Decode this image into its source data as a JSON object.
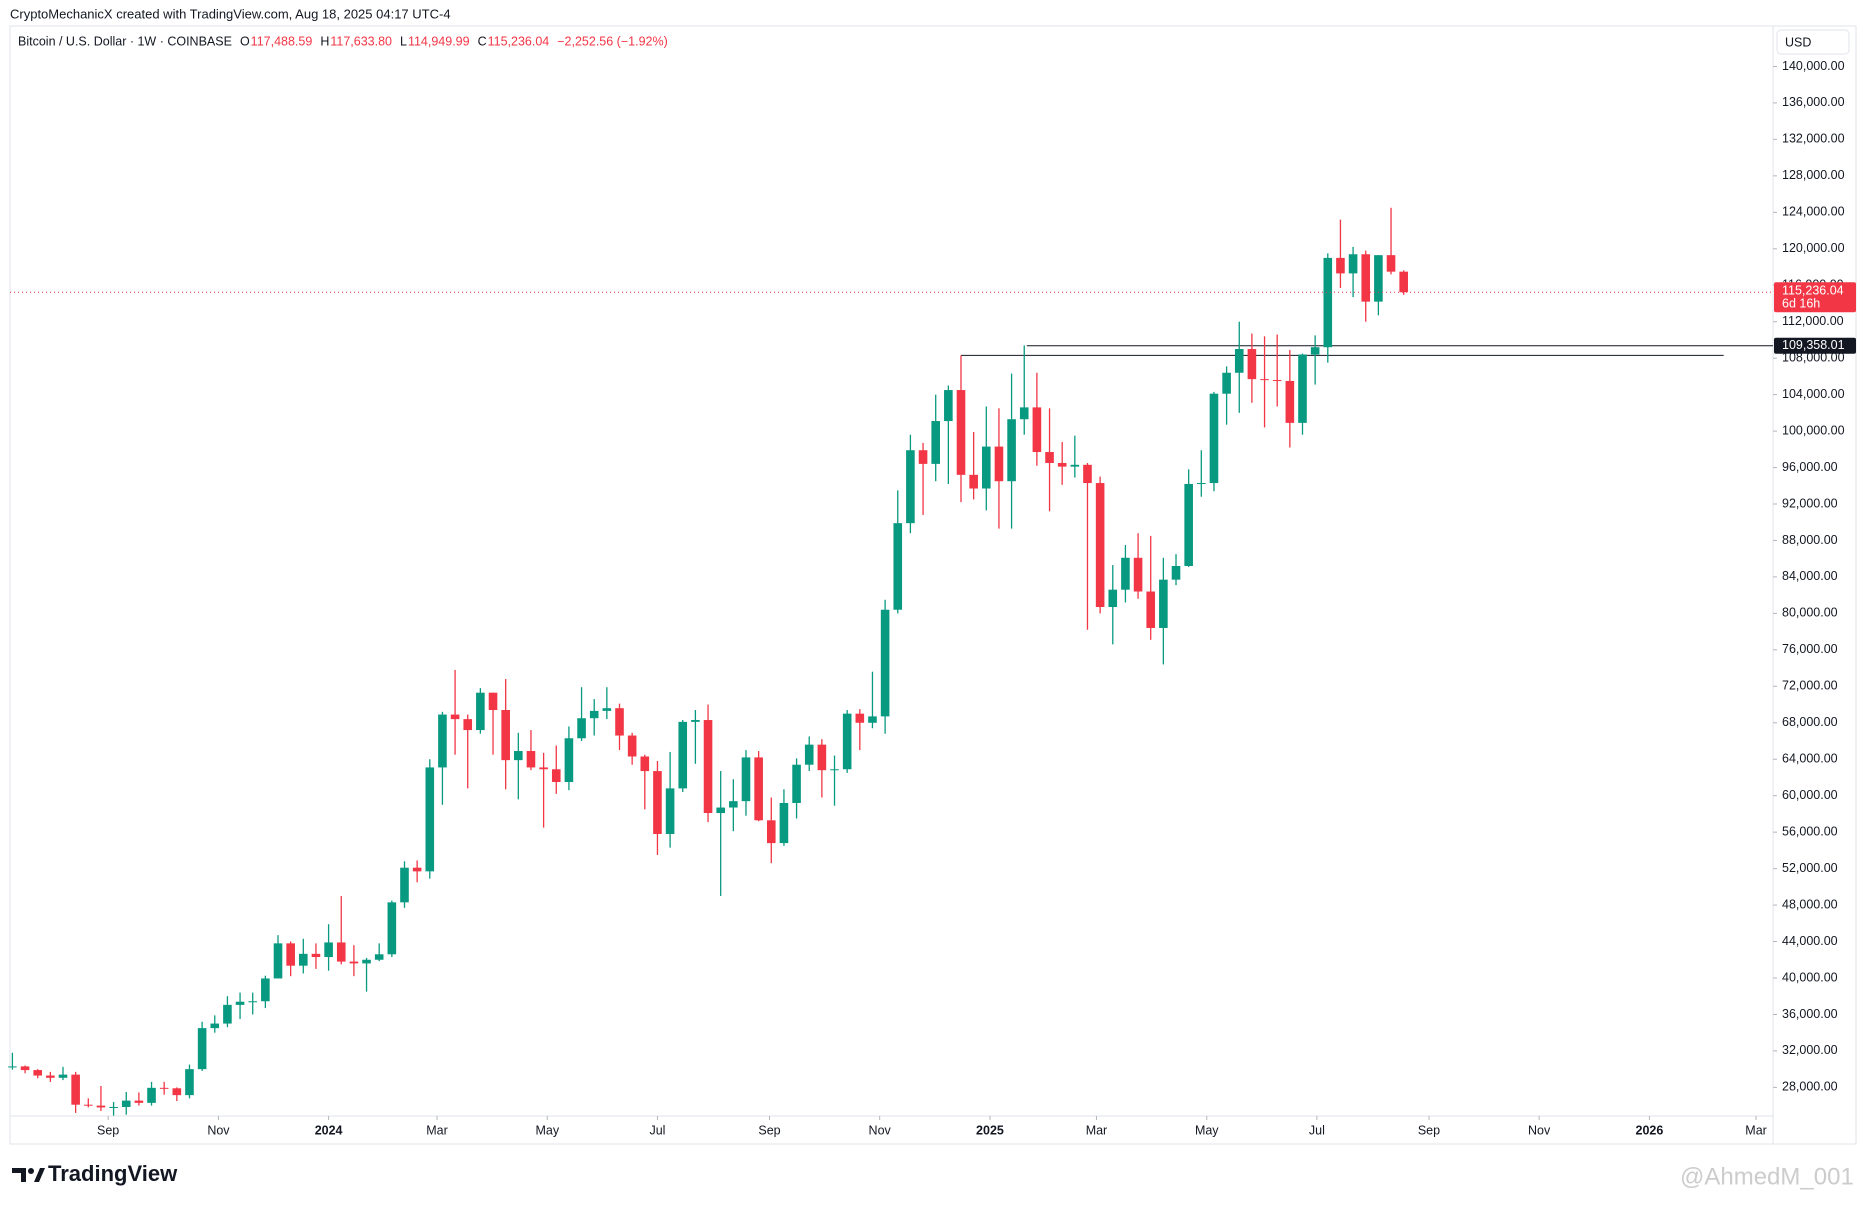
{
  "header": "CryptoMechanicX created with TradingView.com, Aug 18, 2025 04:17 UTC-4",
  "legend": {
    "symbol": "Bitcoin / U.S. Dollar · 1W · COINBASE",
    "ohlc": [
      {
        "key": "O",
        "text": "117,488.59"
      },
      {
        "key": "H",
        "text": "117,633.80"
      },
      {
        "key": "L",
        "text": "114,949.99"
      },
      {
        "key": "C",
        "text": "115,236.04"
      }
    ],
    "change": "−2,252.56 (−1.92%)"
  },
  "brand": "TradingView",
  "watermark": "@AhmedM_001",
  "chart_data": {
    "type": "candlestick",
    "currency": "USD",
    "up_color": "#089981",
    "down_color": "#f23645",
    "open": [
      30300,
      30300,
      29900,
      29300,
      29050,
      29400,
      26100,
      26000,
      25800,
      25850,
      26550,
      26300,
      27950,
      27900,
      27150,
      30000,
      34500,
      35000,
      37050,
      37400,
      37450,
      39950,
      43800,
      41350,
      42650,
      42300,
      43900,
      41800,
      41600,
      42000,
      42600,
      48300,
      52100,
      51700,
      63100,
      68900,
      68400,
      67200,
      71300,
      69400,
      63900,
      64900,
      63100,
      62900,
      61500,
      66300,
      68500,
      69300,
      69600,
      66600,
      64300,
      62700,
      55800,
      60800,
      68100,
      68300,
      58100,
      58700,
      59400,
      64200,
      57300,
      54800,
      59200,
      63400,
      65600,
      62800,
      62900,
      69000,
      68000,
      68700,
      80400,
      89900,
      97900,
      96400,
      101100,
      104500,
      95200,
      93700,
      98300,
      94500,
      101300,
      102600,
      97700,
      96500,
      96100,
      96300,
      94300,
      80700,
      82600,
      86100,
      82400,
      78400,
      83700,
      85200,
      94200,
      94300,
      104100,
      106400,
      109000,
      105700,
      105600,
      105500,
      100900,
      108400,
      109200,
      119000,
      117300,
      119400,
      114200,
      119300,
      117488.59
    ],
    "high": [
      31800,
      30400,
      30000,
      29700,
      30250,
      29700,
      26800,
      28150,
      26400,
      27500,
      27450,
      28600,
      28600,
      28000,
      30500,
      35200,
      35900,
      38000,
      38400,
      38400,
      40250,
      44700,
      44000,
      44300,
      43800,
      45900,
      49000,
      43600,
      42200,
      43800,
      48500,
      52800,
      52900,
      64000,
      69200,
      73800,
      68900,
      71800,
      71300,
      72800,
      66900,
      67200,
      64700,
      65500,
      67600,
      71900,
      70600,
      71900,
      70100,
      66900,
      64500,
      63800,
      64800,
      68300,
      69400,
      70000,
      62700,
      61800,
      65000,
      64900,
      59800,
      60700,
      64100,
      66500,
      66200,
      64400,
      69400,
      69500,
      73600,
      81500,
      93500,
      99600,
      98700,
      104000,
      105000,
      108300,
      99900,
      102700,
      102500,
      106300,
      109400,
      106400,
      102500,
      98800,
      99500,
      96500,
      95000,
      85300,
      87500,
      88800,
      88500,
      86100,
      86500,
      95800,
      97900,
      104300,
      107100,
      112000,
      110700,
      110400,
      110600,
      108900,
      108500,
      110500,
      119500,
      123200,
      120200,
      119800,
      119300,
      124500,
      117633.8
    ],
    "low": [
      29950,
      29550,
      29000,
      28600,
      28800,
      25200,
      25800,
      25400,
      24900,
      25000,
      26000,
      26000,
      27200,
      26500,
      26800,
      29800,
      34000,
      34600,
      35500,
      36000,
      36700,
      39950,
      40200,
      40500,
      41000,
      40800,
      41500,
      40200,
      38500,
      41850,
      42300,
      47700,
      50500,
      50900,
      59000,
      64500,
      60800,
      66800,
      64500,
      60700,
      59600,
      62800,
      56500,
      60200,
      60600,
      66000,
      66600,
      68400,
      65000,
      63400,
      58500,
      53500,
      54300,
      60400,
      63500,
      57100,
      49000,
      56100,
      57800,
      57200,
      52600,
      54500,
      57500,
      62700,
      59800,
      58900,
      62500,
      65000,
      67400,
      66800,
      80000,
      88800,
      90800,
      94500,
      94200,
      92200,
      92500,
      91300,
      89300,
      89300,
      99600,
      96200,
      91200,
      94100,
      94900,
      78200,
      80000,
      76600,
      81200,
      81600,
      77100,
      74400,
      83100,
      85100,
      92800,
      93400,
      100700,
      102000,
      103100,
      100400,
      102700,
      98200,
      99600,
      105100,
      107500,
      115700,
      114700,
      112000,
      112700,
      117200,
      114949.99
    ],
    "close": [
      30300,
      29900,
      29300,
      29050,
      29400,
      26100,
      26000,
      25800,
      25850,
      26550,
      26300,
      27950,
      27900,
      27150,
      30000,
      34500,
      35000,
      37050,
      37400,
      37450,
      39950,
      43800,
      41350,
      42650,
      42300,
      43900,
      41800,
      41600,
      42000,
      42600,
      48300,
      52100,
      51700,
      63100,
      68900,
      68400,
      67200,
      71300,
      69400,
      63900,
      64900,
      63100,
      62900,
      61500,
      66300,
      68500,
      69300,
      69600,
      66600,
      64300,
      62700,
      55800,
      60800,
      68100,
      68300,
      58100,
      58700,
      59400,
      64200,
      57300,
      54800,
      59200,
      63400,
      65600,
      62800,
      62900,
      69000,
      68000,
      68700,
      80400,
      89900,
      97900,
      96400,
      101100,
      104500,
      95200,
      93700,
      98300,
      94500,
      101300,
      102600,
      97700,
      96500,
      96100,
      96300,
      94300,
      80700,
      82600,
      86100,
      82400,
      78400,
      83700,
      85200,
      94200,
      94300,
      104100,
      106400,
      109000,
      105700,
      105600,
      105500,
      100900,
      108400,
      109200,
      119000,
      117300,
      119400,
      114200,
      119300,
      117488.59,
      115236.04
    ],
    "xlim": [
      -0.19,
      139.2
    ],
    "xticks": [
      {
        "value": 7.57,
        "label": "Sep"
      },
      {
        "value": 16.29,
        "label": "Nov"
      },
      {
        "value": 25,
        "label": "2024"
      },
      {
        "value": 33.57,
        "label": "Mar"
      },
      {
        "value": 42.29,
        "label": "May"
      },
      {
        "value": 51,
        "label": "Jul"
      },
      {
        "value": 59.86,
        "label": "Sep"
      },
      {
        "value": 68.57,
        "label": "Nov"
      },
      {
        "value": 77.29,
        "label": "2025"
      },
      {
        "value": 85.71,
        "label": "Mar"
      },
      {
        "value": 94.43,
        "label": "May"
      },
      {
        "value": 103.14,
        "label": "Jul"
      },
      {
        "value": 112,
        "label": "Sep"
      },
      {
        "value": 120.71,
        "label": "Nov"
      },
      {
        "value": 129.43,
        "label": "2026"
      },
      {
        "value": 137.86,
        "label": "Mar"
      }
    ],
    "ylim": [
      24860,
      144440
    ],
    "yticks": [
      {
        "value": 28000,
        "label": "28,000.00"
      },
      {
        "value": 32000,
        "label": "32,000.00"
      },
      {
        "value": 36000,
        "label": "36,000.00"
      },
      {
        "value": 40000,
        "label": "40,000.00"
      },
      {
        "value": 44000,
        "label": "44,000.00"
      },
      {
        "value": 48000,
        "label": "48,000.00"
      },
      {
        "value": 52000,
        "label": "52,000.00"
      },
      {
        "value": 56000,
        "label": "56,000.00"
      },
      {
        "value": 60000,
        "label": "60,000.00"
      },
      {
        "value": 64000,
        "label": "64,000.00"
      },
      {
        "value": 68000,
        "label": "68,000.00"
      },
      {
        "value": 72000,
        "label": "72,000.00"
      },
      {
        "value": 76000,
        "label": "76,000.00"
      },
      {
        "value": 80000,
        "label": "80,000.00"
      },
      {
        "value": 84000,
        "label": "84,000.00"
      },
      {
        "value": 88000,
        "label": "88,000.00"
      },
      {
        "value": 92000,
        "label": "92,000.00"
      },
      {
        "value": 96000,
        "label": "96,000.00"
      },
      {
        "value": 100000,
        "label": "100,000.00"
      },
      {
        "value": 104000,
        "label": "104,000.00"
      },
      {
        "value": 108000,
        "label": "108,000.00"
      },
      {
        "value": 112000,
        "label": "112,000.00"
      },
      {
        "value": 116000,
        "label": "116,000.00"
      },
      {
        "value": 120000,
        "label": "120,000.00"
      },
      {
        "value": 124000,
        "label": "124,000.00"
      },
      {
        "value": 128000,
        "label": "128,000.00"
      },
      {
        "value": 132000,
        "label": "132,000.00"
      },
      {
        "value": 136000,
        "label": "136,000.00"
      },
      {
        "value": 140000,
        "label": "140,000.00"
      }
    ],
    "last_price": {
      "value": 115236.04,
      "label": "115,236.04",
      "countdown": "6d 16h"
    },
    "lines": [
      {
        "value": 109358.01,
        "label": "109,358.01",
        "from": 80.2
      },
      {
        "value": 108300,
        "from": 75,
        "to": 135.3
      }
    ]
  }
}
